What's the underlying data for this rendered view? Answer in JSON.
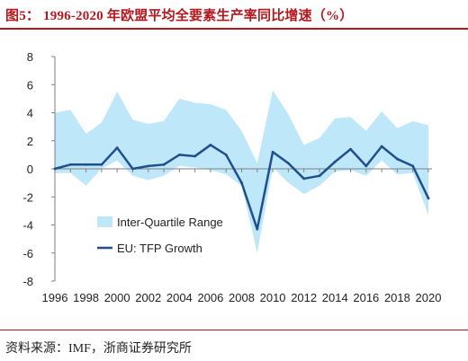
{
  "header": {
    "title": "图5：  1996-2020 年欧盟平均全要素生产率同比增速（%）"
  },
  "footer": {
    "source": "资料来源：IMF，浙商证券研究所"
  },
  "colors": {
    "header_red": "#b3181f",
    "band_fill": "#bfe7fa",
    "line": "#1f4e8c",
    "axis": "#7f7f7f"
  },
  "chart_data": {
    "type": "area",
    "title": "",
    "xlabel": "",
    "ylabel": "",
    "ylim": [
      -8,
      8
    ],
    "yticks": [
      -8,
      -6,
      -4,
      -2,
      0,
      2,
      4,
      6,
      8
    ],
    "xticks": [
      1996,
      1998,
      2000,
      2002,
      2004,
      2006,
      2008,
      2010,
      2012,
      2014,
      2016,
      2018,
      2020
    ],
    "x": [
      1996,
      1997,
      1998,
      1999,
      2000,
      2001,
      2002,
      2003,
      2004,
      2005,
      2006,
      2007,
      2008,
      2009,
      2010,
      2011,
      2012,
      2013,
      2014,
      2015,
      2016,
      2017,
      2018,
      2019,
      2020
    ],
    "grid": false,
    "legend_position": "lower-left",
    "band": {
      "name": "Inter-Quartile Range",
      "upper": [
        4.0,
        4.2,
        2.5,
        3.3,
        5.5,
        3.5,
        3.2,
        3.4,
        5.0,
        4.7,
        4.6,
        4.2,
        2.7,
        0.4,
        5.6,
        3.9,
        1.7,
        2.2,
        3.6,
        3.7,
        2.7,
        4.1,
        2.9,
        3.4,
        3.1
      ],
      "lower": [
        -0.3,
        -0.3,
        -1.2,
        0.0,
        0.6,
        -0.5,
        -0.8,
        -0.5,
        0.2,
        0.1,
        -0.1,
        -0.4,
        -1.2,
        -6.0,
        0.1,
        -1.0,
        -1.8,
        -1.2,
        -0.2,
        -0.1,
        -0.5,
        0.6,
        -0.4,
        -0.3,
        -3.3
      ]
    },
    "series": [
      {
        "name": "EU: TFP Growth",
        "values": [
          0.0,
          0.3,
          0.3,
          0.3,
          1.5,
          0.0,
          0.2,
          0.3,
          1.0,
          0.9,
          1.7,
          1.0,
          -1.0,
          -4.3,
          1.2,
          0.4,
          -0.7,
          -0.5,
          0.5,
          1.4,
          0.2,
          1.6,
          0.7,
          0.2,
          -2.1
        ]
      }
    ]
  }
}
